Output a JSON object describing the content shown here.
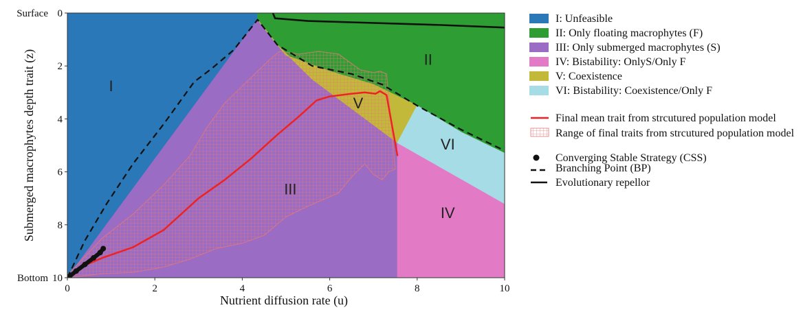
{
  "chart_data": {
    "type": "area",
    "xlabel": "Nutrient diffusion rate (u)",
    "ylabel": "Submerged macrophytes depth trait (z)",
    "xlim": [
      0,
      10
    ],
    "ylim": [
      0,
      10
    ],
    "y_inverted": true,
    "grid": false,
    "legend_position": "right",
    "x_ticks": [
      "0",
      "2",
      "4",
      "6",
      "8",
      "10"
    ],
    "y_ticks": [
      "0",
      "2",
      "4",
      "6",
      "8",
      "10"
    ],
    "y_end_labels": {
      "top": "Surface",
      "bottom": "Bottom"
    },
    "colors": {
      "I": "#2a78b8",
      "II": "#2e9e34",
      "III": "#9a6cc4",
      "IV": "#e37ac6",
      "V": "#c2b83a",
      "VI": "#a6dce6",
      "mean_trait": "#ee2222",
      "range_hatch": "#e87878",
      "boundary": "#111111"
    },
    "regions": [
      {
        "id": "I",
        "label": "I",
        "legend": "I: Unfeasible",
        "polygon": [
          [
            0,
            10
          ],
          [
            0,
            0
          ],
          [
            4.35,
            0
          ],
          [
            4.35,
            0.25
          ],
          [
            0,
            10
          ]
        ],
        "label_at": [
          1.0,
          2.8
        ]
      },
      {
        "id": "II",
        "label": "II",
        "legend": "II: Only floating macrophytes (F)",
        "polygon": [
          [
            4.35,
            0
          ],
          [
            10,
            0
          ],
          [
            10,
            5.3
          ],
          [
            9.0,
            4.5
          ],
          [
            8.0,
            3.5
          ],
          [
            7.0,
            2.7
          ],
          [
            6.0,
            2.2
          ],
          [
            5.0,
            1.6
          ],
          [
            4.35,
            0.25
          ]
        ],
        "label_at": [
          8.25,
          1.8
        ]
      },
      {
        "id": "III",
        "label": "III",
        "legend": "III: Only submerged macrophytes (S)",
        "polygon": [
          [
            0,
            10
          ],
          [
            4.35,
            0.25
          ],
          [
            4.8,
            1.2
          ],
          [
            5.6,
            2.5
          ],
          [
            7.55,
            4.9
          ],
          [
            7.55,
            10
          ]
        ],
        "label_at": [
          5.1,
          6.7
        ]
      },
      {
        "id": "IV",
        "label": "IV",
        "legend": "IV: Bistability: OnlyS/Only F",
        "polygon": [
          [
            7.55,
            10
          ],
          [
            7.55,
            4.9
          ],
          [
            10,
            7.2
          ],
          [
            10,
            10
          ]
        ],
        "label_at": [
          8.7,
          7.6
        ]
      },
      {
        "id": "V",
        "label": "V",
        "legend": "V: Coexistence",
        "polygon": [
          [
            4.35,
            0.25
          ],
          [
            5.0,
            1.6
          ],
          [
            6.0,
            2.2
          ],
          [
            7.0,
            2.7
          ],
          [
            8.0,
            3.5
          ],
          [
            7.55,
            4.9
          ],
          [
            5.6,
            2.5
          ],
          [
            4.8,
            1.2
          ]
        ],
        "label_at": [
          6.65,
          3.45
        ]
      },
      {
        "id": "VI",
        "label": "VI",
        "legend": "VI: Bistability: Coexistence/Only F",
        "polygon": [
          [
            7.55,
            4.9
          ],
          [
            8.0,
            3.5
          ],
          [
            9.0,
            4.5
          ],
          [
            10,
            5.3
          ],
          [
            10,
            7.2
          ]
        ],
        "label_at": [
          8.7,
          5.0
        ]
      }
    ],
    "series": [
      {
        "name": "Final  mean trait from strcutured population model",
        "style": "solid-red",
        "x": [
          0,
          0.3,
          0.8,
          1.5,
          2.2,
          3.0,
          3.6,
          4.2,
          4.8,
          5.3,
          5.7,
          6.0,
          6.5,
          6.8,
          7.05,
          7.15,
          7.3,
          7.55
        ],
        "y": [
          10,
          9.6,
          9.25,
          8.85,
          8.2,
          7.0,
          6.3,
          5.5,
          4.6,
          3.9,
          3.3,
          3.15,
          3.05,
          3.0,
          3.05,
          2.95,
          3.1,
          5.4
        ]
      },
      {
        "name": "Range of final traits from strcutured population model",
        "style": "hatched-band",
        "x": [
          0,
          0.8,
          1.5,
          2.2,
          2.8,
          3.2,
          3.6,
          4.1,
          4.6,
          4.85,
          5.3,
          5.75,
          6.2,
          6.7,
          7.0,
          7.15,
          7.3,
          7.5,
          7.35,
          7.2,
          7.0,
          6.8,
          6.5,
          6.2,
          5.5,
          5.0,
          4.5,
          4.0,
          3.4,
          2.8,
          2.2,
          1.5,
          0.8,
          0
        ],
        "y": [
          9.9,
          8.5,
          7.6,
          6.5,
          5.4,
          4.3,
          3.4,
          2.6,
          1.8,
          1.45,
          1.55,
          1.45,
          1.55,
          2.15,
          2.25,
          2.2,
          2.3,
          5.9,
          6.0,
          6.3,
          6.1,
          5.7,
          6.2,
          6.8,
          7.3,
          7.7,
          8.4,
          8.7,
          8.9,
          9.3,
          9.6,
          9.8,
          9.85,
          10
        ]
      },
      {
        "name": "Branching Point (BP)",
        "style": "dashed-black",
        "x": [
          0,
          0.4,
          0.9,
          1.5,
          2.2,
          2.9,
          3.3,
          3.8,
          4.35,
          4.8,
          5.6,
          6.5,
          7.2,
          8.0,
          9.0,
          10.0
        ],
        "y": [
          10,
          8.6,
          7.2,
          5.7,
          4.2,
          2.6,
          2.1,
          1.4,
          0.25,
          1.2,
          2.0,
          2.3,
          2.7,
          3.5,
          4.4,
          5.2
        ]
      },
      {
        "name": "Evolutionary repellor",
        "style": "solid-black",
        "x": [
          4.7,
          4.75,
          5.5,
          6.5,
          7.5,
          8.5,
          10.0
        ],
        "y": [
          0.0,
          0.2,
          0.3,
          0.35,
          0.4,
          0.45,
          0.55
        ]
      },
      {
        "name": "Converging Stable Strategy (CSS)",
        "style": "thick-black-dots",
        "x": [
          0.05,
          0.2,
          0.4,
          0.6,
          0.75,
          0.82
        ],
        "y": [
          9.95,
          9.75,
          9.5,
          9.25,
          9.05,
          8.9
        ]
      }
    ],
    "legend": {
      "regions": [
        "I: Unfeasible",
        "II: Only floating macrophytes (F)",
        "III: Only submerged macrophytes (S)",
        "IV: Bistability: OnlyS/Only F",
        "V: Coexistence",
        "VI: Bistability: Coexistence/Only F"
      ],
      "model": [
        "Final  mean trait from strcutured population model",
        "Range of final traits from strcutured population model"
      ],
      "markers": [
        "Converging Stable Strategy (CSS)",
        "Branching Point (BP)",
        "Evolutionary repellor"
      ]
    }
  }
}
